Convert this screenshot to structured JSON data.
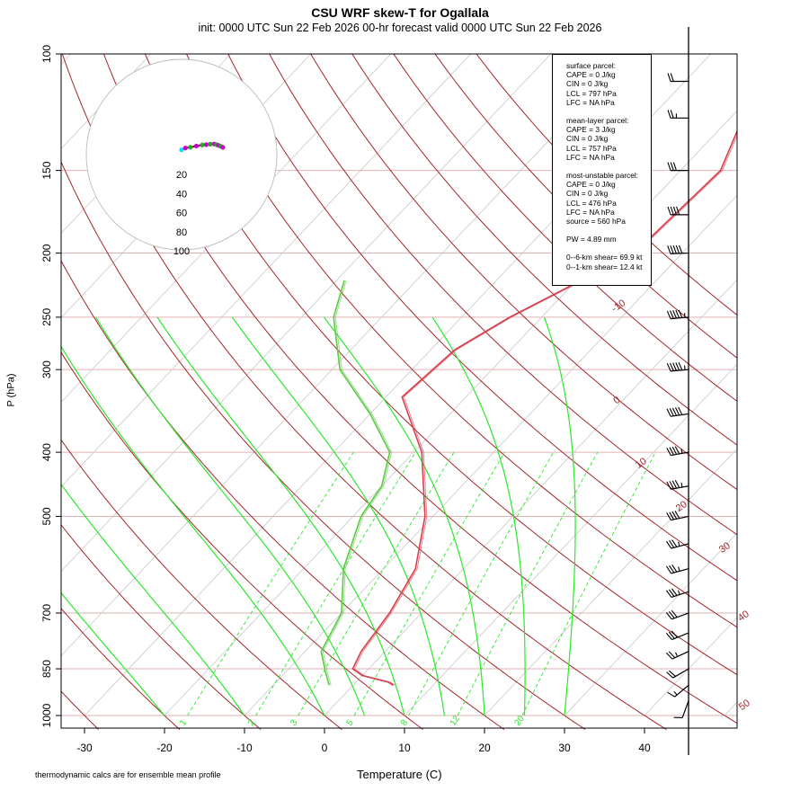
{
  "title": "CSU WRF skew-T for Ogallala",
  "subtitle": "init: 0000 UTC Sun 22 Feb 2026     00-hr forecast valid 0000 UTC Sun 22 Feb 2026",
  "footnote": "thermodynamic calcs are for ensemble mean profile",
  "infobox": {
    "surface": [
      "surface parcel:",
      "CAPE = 0 J/kg",
      "CIN = 0 J/kg",
      "LCL = 797 hPa",
      "LFC = NA hPa"
    ],
    "mean_layer": [
      "mean-layer parcel:",
      "CAPE = 3 J/kg",
      "CIN = 0 J/kg",
      "LCL = 757 hPa",
      "LFC = NA hPa"
    ],
    "most_unstable": [
      "most-unstable parcel:",
      "CAPE = 0 J/kg",
      "CIN = 0 J/kg",
      "LCL = 476 hPa",
      "LFC = NA hPa",
      "source = 560 hPa"
    ],
    "pw": [
      "PW =  4.89 mm"
    ],
    "shear": [
      "0--6-km shear= 69.9 kt",
      "0--1-km shear= 12.4 kt"
    ]
  },
  "chart_data": {
    "type": "line",
    "title": "CSU WRF skew-T for Ogallala",
    "xlabel": "Temperature (C)",
    "ylabel": "P (hPa)",
    "xlim": [
      -33,
      50
    ],
    "ylim": [
      1000,
      100
    ],
    "y_scale": "log",
    "x_ticks": [
      -30,
      -20,
      -10,
      0,
      10,
      20,
      30,
      40
    ],
    "y_ticks": [
      100,
      150,
      200,
      250,
      300,
      400,
      500,
      700,
      850,
      1000
    ],
    "dry_adiabat_labels": [
      -10,
      0,
      10,
      20,
      30,
      40,
      50
    ],
    "mixing_ratio_labels": [
      1,
      2,
      3,
      5,
      8,
      12,
      20
    ],
    "grid": true,
    "colors": {
      "temperature": "#d6404c",
      "dewpoint": "#5ec944",
      "dry_adiabat": "#a3262a",
      "moist_adiabat": "#2ae82a",
      "mixing_ratio": "#2ae82a",
      "isotherm": "#c8c8c8",
      "isobar": "#e2b2b2"
    },
    "temperature_profile": {
      "p": [
        900,
        890,
        870,
        850,
        800,
        700,
        600,
        500,
        400,
        330,
        280,
        250,
        200,
        150,
        115
      ],
      "T": [
        5,
        4,
        0,
        -2,
        -3,
        -4,
        -6,
        -11,
        -19,
        -28,
        -27,
        -24,
        -16,
        -15,
        -20
      ]
    },
    "dewpoint_profile": {
      "p": [
        900,
        860,
        800,
        700,
        600,
        500,
        450,
        400,
        350,
        300,
        250,
        220
      ],
      "Td": [
        -3,
        -5,
        -8,
        -10,
        -15,
        -19,
        -20,
        -23,
        -30,
        -39,
        -46,
        -49
      ]
    },
    "hodograph": {
      "rings": [
        20,
        40,
        60,
        80,
        100
      ],
      "labels": [
        "20",
        "40",
        "60",
        "80",
        "100"
      ],
      "wind_dir": [
        180,
        210,
        230,
        240,
        245,
        248,
        250,
        252,
        254,
        256,
        258,
        260
      ],
      "wind_kt": [
        5,
        8,
        12,
        18,
        24,
        28,
        32,
        36,
        38,
        40,
        42,
        44
      ]
    },
    "wind_barbs": {
      "p": [
        950,
        900,
        850,
        800,
        750,
        700,
        650,
        600,
        550,
        500,
        450,
        400,
        350,
        300,
        250,
        200,
        175,
        150,
        125,
        110
      ],
      "dir": [
        200,
        230,
        240,
        245,
        248,
        250,
        252,
        255,
        255,
        258,
        260,
        260,
        262,
        265,
        265,
        268,
        270,
        270,
        270,
        270
      ],
      "kt": [
        10,
        15,
        20,
        25,
        30,
        32,
        35,
        35,
        38,
        40,
        45,
        48,
        50,
        55,
        55,
        50,
        40,
        30,
        25,
        20
      ]
    }
  }
}
